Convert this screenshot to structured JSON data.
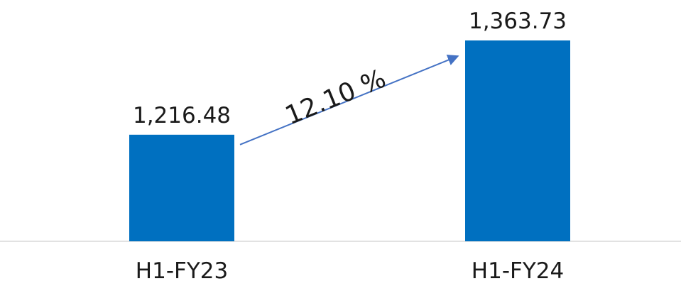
{
  "chart_data": {
    "type": "bar",
    "title": "",
    "xlabel": "",
    "ylabel": "",
    "categories": [
      "H1-FY23",
      "H1-FY24"
    ],
    "values": [
      1216.48,
      1363.73
    ],
    "value_labels": [
      "1,216.48",
      "1,363.73"
    ],
    "ylim": [
      1050,
      1363.73
    ],
    "grid": false,
    "bar_color": "#0070C0",
    "axis_color": "#D9D9D9",
    "annotation": {
      "type": "growth-arrow",
      "text": "12.10 %",
      "color": "#4472C4"
    }
  }
}
